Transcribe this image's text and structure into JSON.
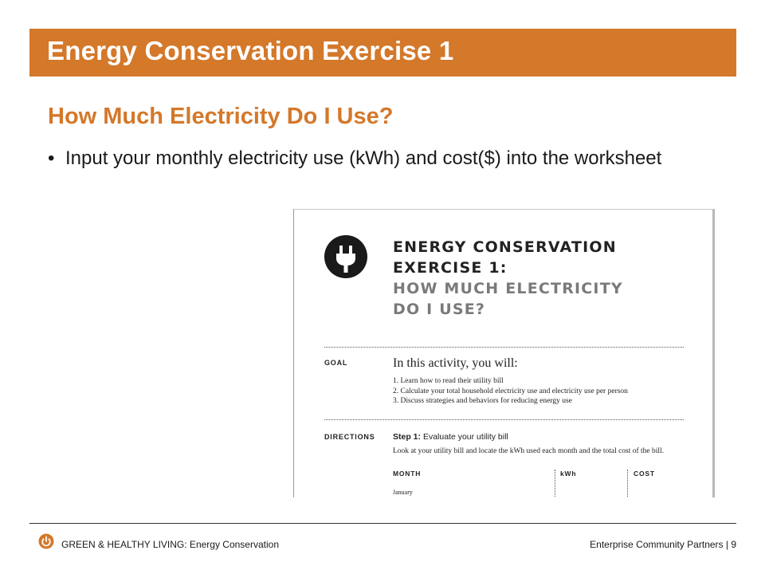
{
  "slide": {
    "title": "Energy Conservation Exercise 1",
    "subtitle": "How Much Electricity Do I Use?",
    "bullet": "Input your monthly electricity use (kWh) and cost($) into the worksheet",
    "accent_color": "#d4782a"
  },
  "worksheet": {
    "heading_line1": "ENERGY CONSERVATION",
    "heading_line2": "EXERCISE 1:",
    "heading_line3": "HOW MUCH ELECTRICITY",
    "heading_line4": "DO I USE?",
    "logo_icon": "plug-icon",
    "goal_label": "GOAL",
    "goal_intro": "In this activity, you will:",
    "goal_items": [
      "1. Learn how to read their utility bill",
      "2. Calculate your total household electricity use and electricity use per person",
      "3. Discuss strategies and behaviors for reducing energy use"
    ],
    "directions_label": "DIRECTIONS",
    "step_title": "Step 1:",
    "step_text": "Evaluate your utility bill",
    "step_desc": "Look at your utility bill and locate the kWh used each month and the total cost of the bill.",
    "columns": [
      "MONTH",
      "kWh",
      "COST"
    ],
    "first_month": "January"
  },
  "footer": {
    "left": "GREEN & HEALTHY LIVING: Energy Conservation",
    "right": "Enterprise Community Partners | 9",
    "icon": "power-icon"
  }
}
